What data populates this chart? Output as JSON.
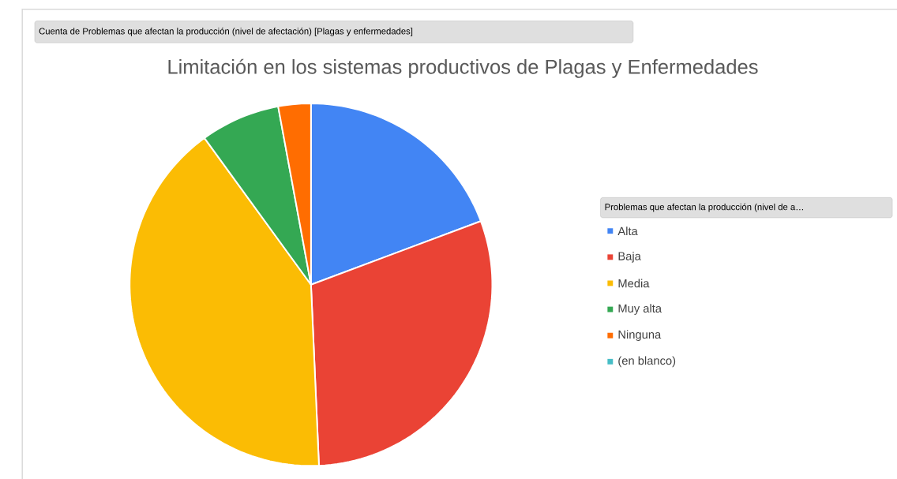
{
  "chart_data": {
    "type": "pie",
    "title": "Limitación en los sistemas productivos de Plagas y Enfermedades",
    "legend_title": "Problemas que afectan la producción (nivel de a…",
    "annotations": [
      "Cuenta de Problemas que afectan la producción (nivel de afectación) [Plagas y enfermedades]"
    ],
    "categories": [
      "Alta",
      "Baja",
      "Media",
      "Muy alta",
      "Ninguna",
      "(en blanco)"
    ],
    "values": [
      19.3,
      30.0,
      40.7,
      7.1,
      2.9,
      0
    ],
    "colors": [
      "#4285f4",
      "#ea4335",
      "#fbbc04",
      "#34a853",
      "#ff6d01",
      "#46bdc6"
    ],
    "legend": "right"
  }
}
